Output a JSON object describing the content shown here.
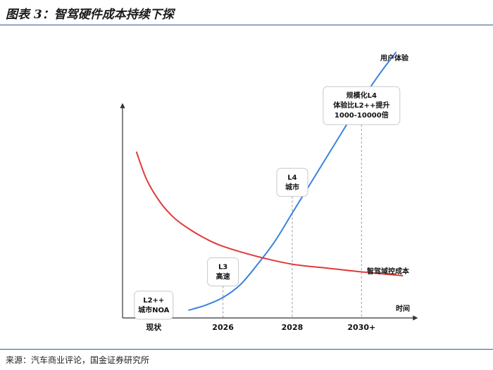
{
  "header": {
    "title": "图表 3：智驾硬件成本持续下探"
  },
  "footer": {
    "source": "来源：汽车商业评论，国金证券研究所"
  },
  "chart_data": {
    "type": "line",
    "title": "图表 3：智驾硬件成本持续下探",
    "xlabel": "时间",
    "ylabel": "",
    "categories": [
      "现状",
      "2026",
      "2028",
      "2030+"
    ],
    "grid": false,
    "series": [
      {
        "name": "用户体验",
        "color": "#3b82e0",
        "x": [
          0.5,
          0.75,
          1.0,
          1.25,
          1.5,
          1.75,
          2.0,
          2.25,
          2.5,
          2.75,
          3.0,
          3.25,
          3.5
        ],
        "y": [
          3,
          5,
          8,
          13,
          21,
          30,
          41,
          52,
          63,
          74,
          85,
          95,
          104
        ]
      },
      {
        "name": "智驾域控成本",
        "color": "#e23b3b",
        "x": [
          -0.25,
          -0.1,
          0.1,
          0.3,
          0.5,
          0.75,
          1.0,
          1.5,
          2.0,
          2.5,
          3.0,
          3.6
        ],
        "y": [
          65,
          54,
          45,
          39,
          35,
          31,
          28,
          24,
          21,
          19.5,
          18,
          16.5
        ]
      }
    ],
    "milestones": [
      {
        "x": 0,
        "y": 5,
        "lines": [
          "L2++",
          "城市NOA"
        ]
      },
      {
        "x": 1,
        "y": 18,
        "lines": [
          "L3",
          "高速"
        ]
      },
      {
        "x": 2,
        "y": 53,
        "lines": [
          "L4",
          "城市"
        ]
      },
      {
        "x": 3,
        "y": 83,
        "lines": [
          "规模化L4",
          "体验比L2++提升",
          "1000-10000倍"
        ]
      }
    ],
    "ylim": [
      0,
      110
    ],
    "xlim": [
      -0.45,
      3.8
    ]
  }
}
